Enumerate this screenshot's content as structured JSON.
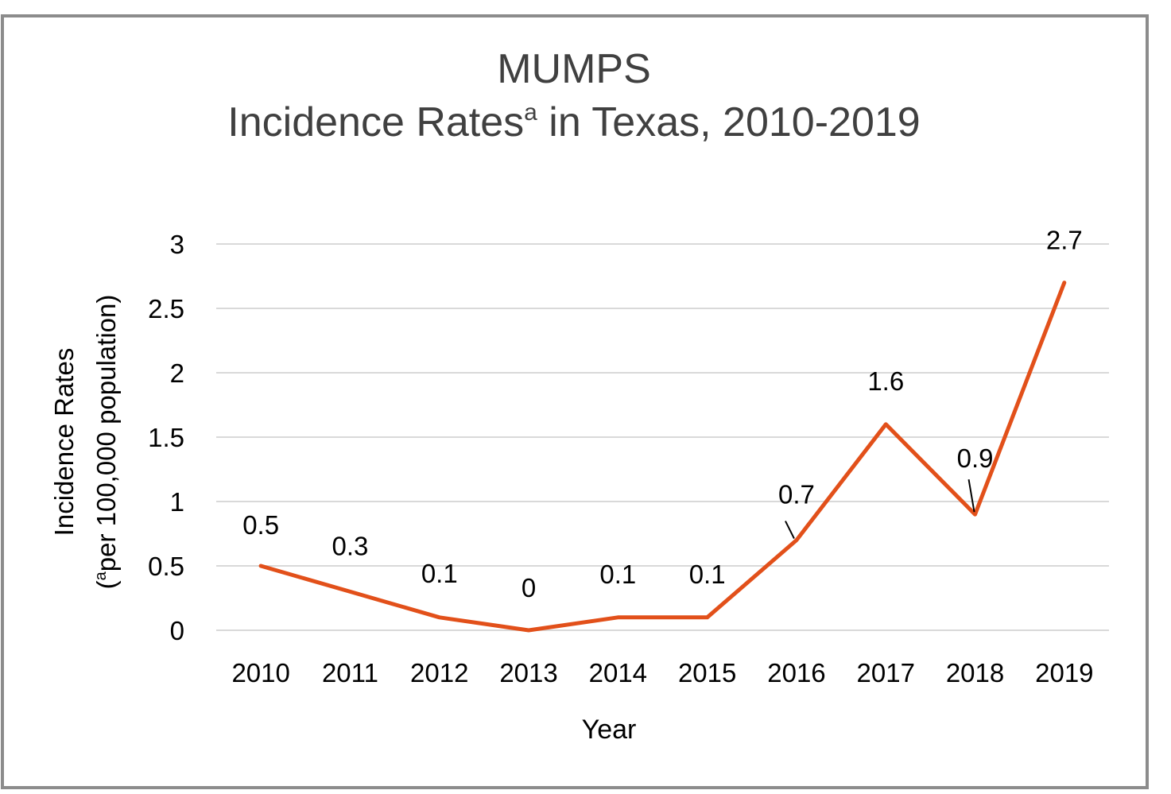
{
  "chart_data": {
    "type": "line",
    "title_line1": "MUMPS",
    "title_line2_main": "Incidence Rates",
    "title_line2_sup": "a",
    "title_line2_rest": " in Texas, 2010-2019",
    "ylabel_line1": "Incidence Rates",
    "ylabel_line2_open": "(",
    "ylabel_line2_sup": "a",
    "ylabel_line2_rest": "per 100,000 population)",
    "xlabel": "Year",
    "categories": [
      "2010",
      "2011",
      "2012",
      "2013",
      "2014",
      "2015",
      "2016",
      "2017",
      "2018",
      "2019"
    ],
    "series": [
      {
        "values": [
          0.5,
          0.3,
          0.1,
          0,
          0.1,
          0.1,
          0.7,
          1.6,
          0.9,
          2.7
        ]
      }
    ],
    "data_labels": [
      "0.5",
      "0.3",
      "0.1",
      "0",
      "0.1",
      "0.1",
      "0.7",
      "1.6",
      "0.9",
      "2.7"
    ],
    "y_ticks": [
      "0",
      "0.5",
      "1",
      "1.5",
      "2",
      "2.5",
      "3"
    ],
    "ylim": [
      0,
      3
    ],
    "grid": true,
    "line_color": "#E2501A",
    "grid_color": "#D9D9D9",
    "border_color": "#8C8C8C",
    "title_color": "#404040",
    "text_color": "#000000"
  }
}
